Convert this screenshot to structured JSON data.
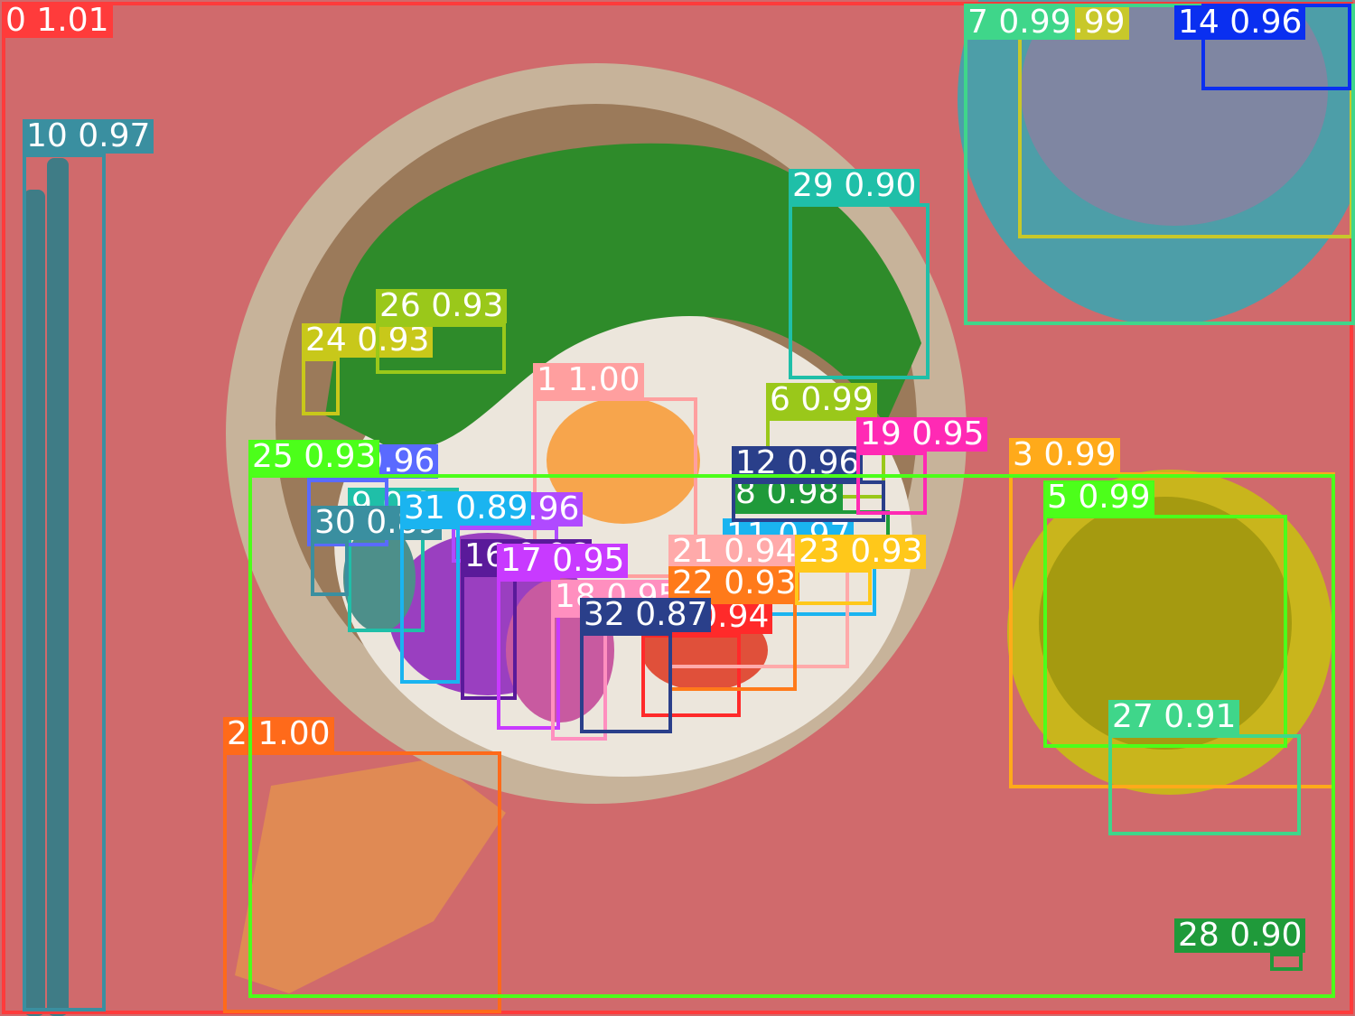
{
  "scene": {
    "background_color": "#d06a6c",
    "pot_rim_color": "#c7b39a",
    "pot_inner_color": "#9b7a5a",
    "pot_handle_color": "#e08a54",
    "rice_color": "#ece6dc",
    "egg_yolk_color": "#f7a54c",
    "greens_color": "#2e8b2a",
    "teal_dish_color": "#4d9ea8",
    "sauce_bowl_color": "#c9b51c",
    "chopsticks_color": "#3f7c86"
  },
  "detections": [
    {
      "id": "0",
      "score": "1.01",
      "color": "#ff3b3b"
    },
    {
      "id": "1",
      "score": "1.00",
      "color": "#ff9f9f"
    },
    {
      "id": "2",
      "score": "1.00",
      "color": "#ff6a1a"
    },
    {
      "id": "3",
      "score": "0.99",
      "color": "#ffaa1a"
    },
    {
      "id": "4",
      "score": "0.99",
      "color": "#c8c82a"
    },
    {
      "id": "5",
      "score": "0.99",
      "color": "#4cff1a"
    },
    {
      "id": "6",
      "score": "0.99",
      "color": "#9ac81a"
    },
    {
      "id": "7",
      "score": "0.99",
      "color": "#3fd68a"
    },
    {
      "id": "8",
      "score": "0.98",
      "color": "#1f9a3a"
    },
    {
      "id": "9",
      "score": "0.97",
      "color": "#1fbfa8"
    },
    {
      "id": "10",
      "score": "0.97",
      "color": "#3a8fa0"
    },
    {
      "id": "11",
      "score": "0.97",
      "color": "#1ab4f0"
    },
    {
      "id": "12",
      "score": "0.96",
      "color": "#2a3f8a"
    },
    {
      "id": "13",
      "score": "0.96",
      "color": "#5a6aff"
    },
    {
      "id": "14",
      "score": "0.96",
      "color": "#0a2ff0"
    },
    {
      "id": "15",
      "score": "0.96",
      "color": "#b04aff"
    },
    {
      "id": "16",
      "score": "0.96",
      "color": "#5a1a9a"
    },
    {
      "id": "17",
      "score": "0.95",
      "color": "#c83aff"
    },
    {
      "id": "18",
      "score": "0.95",
      "color": "#ff8fbf"
    },
    {
      "id": "19",
      "score": "0.95",
      "color": "#ff2ab4"
    },
    {
      "id": "20",
      "score": "0.94",
      "color": "#ff2a2a"
    },
    {
      "id": "21",
      "score": "0.94",
      "color": "#ffaaaa"
    },
    {
      "id": "22",
      "score": "0.93",
      "color": "#ff7a1a"
    },
    {
      "id": "23",
      "score": "0.93",
      "color": "#ffc81a"
    },
    {
      "id": "24",
      "score": "0.93",
      "color": "#c8c81a"
    },
    {
      "id": "25",
      "score": "0.93",
      "color": "#4cff1a"
    },
    {
      "id": "26",
      "score": "0.93",
      "color": "#9ac81a"
    },
    {
      "id": "27",
      "score": "0.91",
      "color": "#3fd68a"
    },
    {
      "id": "28",
      "score": "0.90",
      "color": "#1f9a3a"
    },
    {
      "id": "29",
      "score": "0.90",
      "color": "#1fbfa8"
    },
    {
      "id": "30",
      "score": "0.89",
      "color": "#3a8fa0"
    },
    {
      "id": "31",
      "score": "0.89",
      "color": "#1ab4f0"
    },
    {
      "id": "32",
      "score": "0.87",
      "color": "#2a3f8a"
    }
  ]
}
